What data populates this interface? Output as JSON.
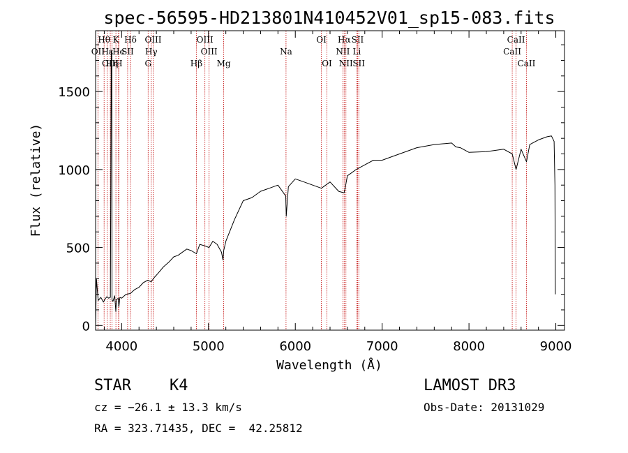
{
  "chart_data": {
    "type": "line",
    "title": "spec-56595-HD213801N410452V01_sp15-083.fits",
    "xlabel": "Wavelength (Å)",
    "ylabel": "Flux (relative)",
    "xlim": [
      3700,
      9100
    ],
    "ylim": [
      -30,
      1890
    ],
    "xticks": [
      4000,
      5000,
      6000,
      7000,
      8000,
      9000
    ],
    "yticks": [
      0,
      500,
      1000,
      1500
    ],
    "series": [
      {
        "name": "spectrum",
        "x": [
          3700,
          3710,
          3730,
          3760,
          3790,
          3810,
          3830,
          3850,
          3870,
          3880,
          3886,
          3889,
          3892,
          3900,
          3920,
          3933,
          3940,
          3960,
          3968,
          3980,
          4000,
          4050,
          4100,
          4150,
          4200,
          4250,
          4300,
          4340,
          4380,
          4420,
          4480,
          4550,
          4600,
          4650,
          4700,
          4750,
          4800,
          4861,
          4900,
          4960,
          5007,
          5050,
          5100,
          5150,
          5167,
          5175,
          5200,
          5300,
          5400,
          5500,
          5600,
          5700,
          5800,
          5890,
          5895,
          5920,
          6000,
          6100,
          6200,
          6300,
          6400,
          6500,
          6563,
          6600,
          6700,
          6800,
          6900,
          7000,
          7200,
          7400,
          7600,
          7800,
          7850,
          7900,
          8000,
          8200,
          8400,
          8498,
          8542,
          8600,
          8662,
          8700,
          8800,
          8900,
          8950,
          8980,
          8990,
          8995
        ],
        "values": [
          0,
          300,
          160,
          180,
          150,
          170,
          185,
          175,
          180,
          1760,
          1760,
          170,
          160,
          155,
          190,
          90,
          165,
          175,
          120,
          180,
          175,
          200,
          205,
          230,
          245,
          275,
          290,
          280,
          310,
          335,
          375,
          410,
          440,
          450,
          470,
          490,
          480,
          460,
          520,
          510,
          500,
          540,
          520,
          470,
          420,
          480,
          540,
          680,
          800,
          820,
          860,
          880,
          900,
          830,
          700,
          890,
          940,
          920,
          900,
          880,
          920,
          860,
          850,
          960,
          1000,
          1030,
          1060,
          1060,
          1100,
          1140,
          1160,
          1170,
          1145,
          1140,
          1110,
          1115,
          1130,
          1100,
          1000,
          1130,
          1050,
          1160,
          1190,
          1210,
          1215,
          1180,
          900,
          200
        ]
      }
    ],
    "spectral_lines": [
      {
        "label": "Hθ",
        "x": 3798,
        "row": 1
      },
      {
        "label": "OII",
        "x": 3727,
        "row": 2
      },
      {
        "label": "OIII",
        "x": 3869,
        "row": 3
      },
      {
        "label": "Hε",
        "x": 3835,
        "row": 2
      },
      {
        "label": "Hη",
        "x": 3889,
        "row": 3
      },
      {
        "label": "K",
        "x": 3934,
        "row": 1
      },
      {
        "label": "He",
        "x": 3964,
        "row": 2
      },
      {
        "label": "H",
        "x": 3968,
        "row": 3
      },
      {
        "label": "Hδ",
        "x": 4102,
        "row": 1
      },
      {
        "label": "SII",
        "x": 4069,
        "row": 2
      },
      {
        "label": "OIII",
        "x": 4363,
        "row": 1
      },
      {
        "label": "Hγ",
        "x": 4341,
        "row": 2
      },
      {
        "label": "G",
        "x": 4305,
        "row": 3
      },
      {
        "label": "OIII",
        "x": 4959,
        "row": 1
      },
      {
        "label": "OIII",
        "x": 5007,
        "row": 2
      },
      {
        "label": "Hβ",
        "x": 4861,
        "row": 3
      },
      {
        "label": "Mg",
        "x": 5175,
        "row": 3
      },
      {
        "label": "Na",
        "x": 5893,
        "row": 2
      },
      {
        "label": "OI",
        "x": 6300,
        "row": 1
      },
      {
        "label": "OI",
        "x": 6364,
        "row": 3
      },
      {
        "label": "Hα",
        "x": 6563,
        "row": 1
      },
      {
        "label": "NII",
        "x": 6548,
        "row": 2
      },
      {
        "label": "NII",
        "x": 6583,
        "row": 3
      },
      {
        "label": "SII",
        "x": 6717,
        "row": 1
      },
      {
        "label": "SII",
        "x": 6731,
        "row": 3
      },
      {
        "label": "Li",
        "x": 6708,
        "row": 2
      },
      {
        "label": "CaII",
        "x": 8542,
        "row": 1
      },
      {
        "label": "CaII",
        "x": 8498,
        "row": 2
      },
      {
        "label": "CaII",
        "x": 8662,
        "row": 3
      }
    ]
  },
  "info": {
    "class": "STAR",
    "subclass": "K4",
    "survey": "LAMOST DR3",
    "cz": "cz = −26.1 ± 13.3 km/s",
    "obs_date": "Obs-Date: 20131029",
    "radec": "RA = 323.71435, DEC =  42.25812"
  },
  "colors": {
    "spectrum": "#000000",
    "line_markers": "#c00000"
  }
}
